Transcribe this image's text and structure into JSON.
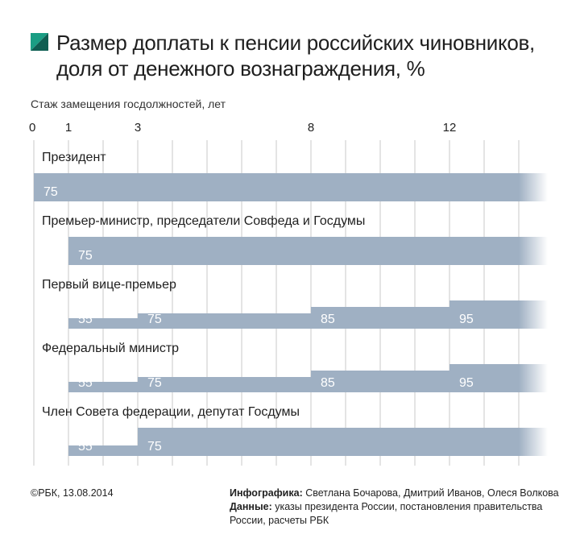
{
  "header": {
    "title_line1": "Размер доплаты к пенсии российских чиновников,",
    "title_line2": "доля от денежного вознаграждения, %"
  },
  "chart_data": {
    "type": "bar",
    "subtype": "step-bar",
    "xlabel": "Стаж замещения госдолжностей, лет",
    "x_tick_labels": [
      "0",
      "1",
      "3",
      "8",
      "12"
    ],
    "x_tick_values": [
      0,
      1,
      3,
      8,
      12
    ],
    "xlim": [
      0,
      15
    ],
    "grid": true,
    "bar_color": "#9fb0c3",
    "rows": [
      {
        "name": "Президент",
        "segments": [
          {
            "from": 0,
            "value": 75
          }
        ]
      },
      {
        "name": "Премьер-министр, председатели Совфеда и Госдумы",
        "segments": [
          {
            "from": 1,
            "value": 75
          }
        ]
      },
      {
        "name": "Первый вице-премьер",
        "segments": [
          {
            "from": 1,
            "value": 55
          },
          {
            "from": 3,
            "value": 75
          },
          {
            "from": 8,
            "value": 85
          },
          {
            "from": 12,
            "value": 95
          }
        ]
      },
      {
        "name": "Федеральный министр",
        "segments": [
          {
            "from": 1,
            "value": 55
          },
          {
            "from": 3,
            "value": 75
          },
          {
            "from": 8,
            "value": 85
          },
          {
            "from": 12,
            "value": 95
          }
        ]
      },
      {
        "name": "Член Совета федерации, депутат Госдумы",
        "segments": [
          {
            "from": 1,
            "value": 55
          },
          {
            "from": 3,
            "value": 75
          }
        ]
      }
    ]
  },
  "footer": {
    "source_date": "©РБК, 13.08.2014",
    "infographics_label": "Инфографика:",
    "infographics_authors": "Светлана Бочарова, Дмитрий Иванов, Олеся Волкова",
    "data_label": "Данные:",
    "data_line1": "указы президента России, постановления правительства",
    "data_line2": "России, расчеты РБК"
  },
  "colors": {
    "logo_green": "#1a9e84",
    "logo_dark": "#0f5e52",
    "grid": "#c9c9c9"
  }
}
